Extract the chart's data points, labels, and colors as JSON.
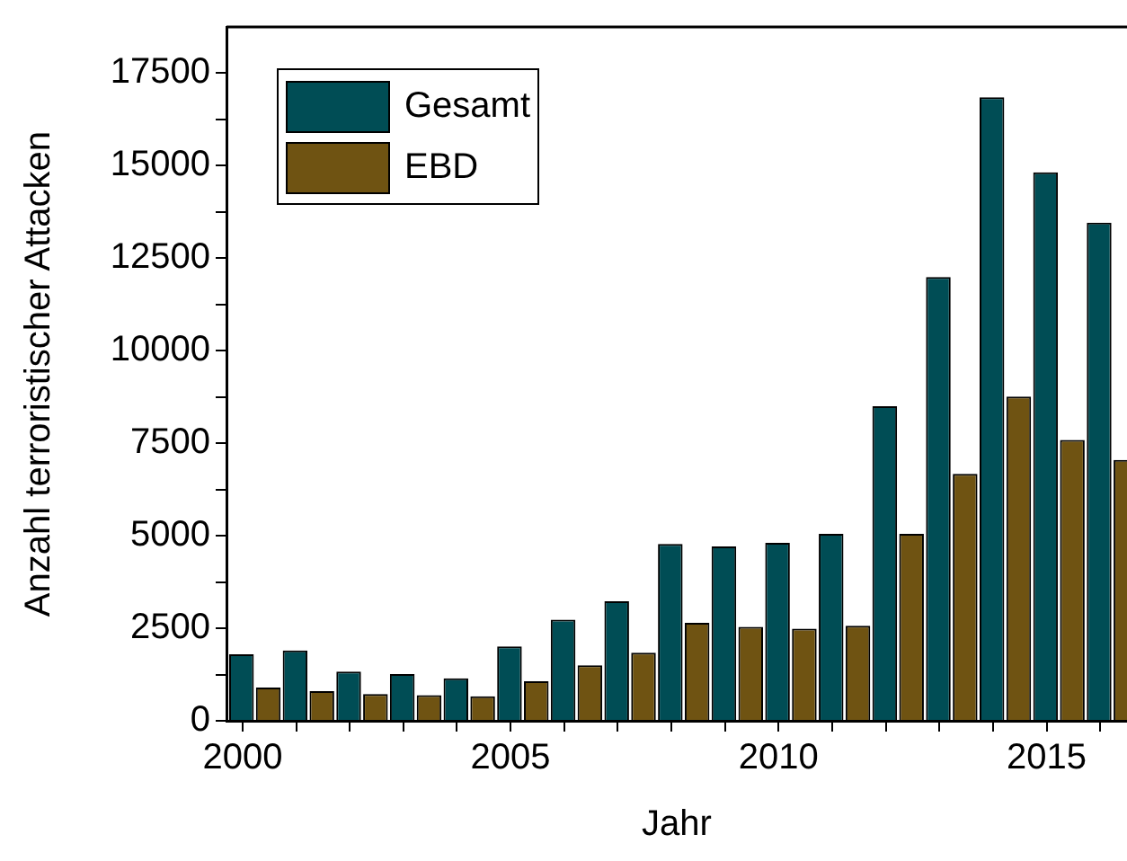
{
  "chart_data": {
    "type": "bar",
    "xlabel": "Jahr",
    "ylabel": "Anzahl terroristischer Attacken",
    "x": [
      2000,
      2001,
      2002,
      2003,
      2004,
      2005,
      2006,
      2007,
      2008,
      2009,
      2010,
      2011,
      2012,
      2013,
      2014,
      2015,
      2016
    ],
    "series": [
      {
        "name": "Gesamt",
        "color": "#004d55",
        "values": [
          1800,
          1900,
          1330,
          1260,
          1150,
          2010,
          2730,
          3230,
          4780,
          4710,
          4810,
          5050,
          8500,
          11990,
          16850,
          14820,
          13460
        ]
      },
      {
        "name": "EBD",
        "color": "#6f5312",
        "values": [
          900,
          800,
          720,
          690,
          660,
          1070,
          1500,
          1840,
          2650,
          2540,
          2490,
          2570,
          5050,
          6670,
          8760,
          7590,
          7050
        ]
      }
    ],
    "xlim": [
      1999.7,
      2016.5
    ],
    "xticks": [
      2000,
      {
        "value": 2001,
        "label": null
      },
      {
        "value": 2002,
        "label": null
      },
      {
        "value": 2003,
        "label": null
      },
      {
        "value": 2004,
        "label": null
      },
      2005,
      {
        "value": 2006,
        "label": null
      },
      {
        "value": 2007,
        "label": null
      },
      {
        "value": 2008,
        "label": null
      },
      {
        "value": 2009,
        "label": null
      },
      2010,
      {
        "value": 2011,
        "label": null
      },
      {
        "value": 2012,
        "label": null
      },
      {
        "value": 2013,
        "label": null
      },
      {
        "value": 2014,
        "label": null
      },
      2015,
      {
        "value": 2016,
        "label": null
      }
    ],
    "ylim": [
      0,
      18750
    ],
    "yticks": [
      0,
      {
        "value": 1250,
        "label": null
      },
      2500,
      {
        "value": 3750,
        "label": null
      },
      5000,
      {
        "value": 6250,
        "label": null
      },
      7500,
      {
        "value": 8750,
        "label": null
      },
      10000,
      {
        "value": 11250,
        "label": null
      },
      12500,
      {
        "value": 13750,
        "label": null
      },
      15000,
      {
        "value": 16250,
        "label": null
      },
      17500
    ],
    "legend": "top left",
    "grid": false
  }
}
